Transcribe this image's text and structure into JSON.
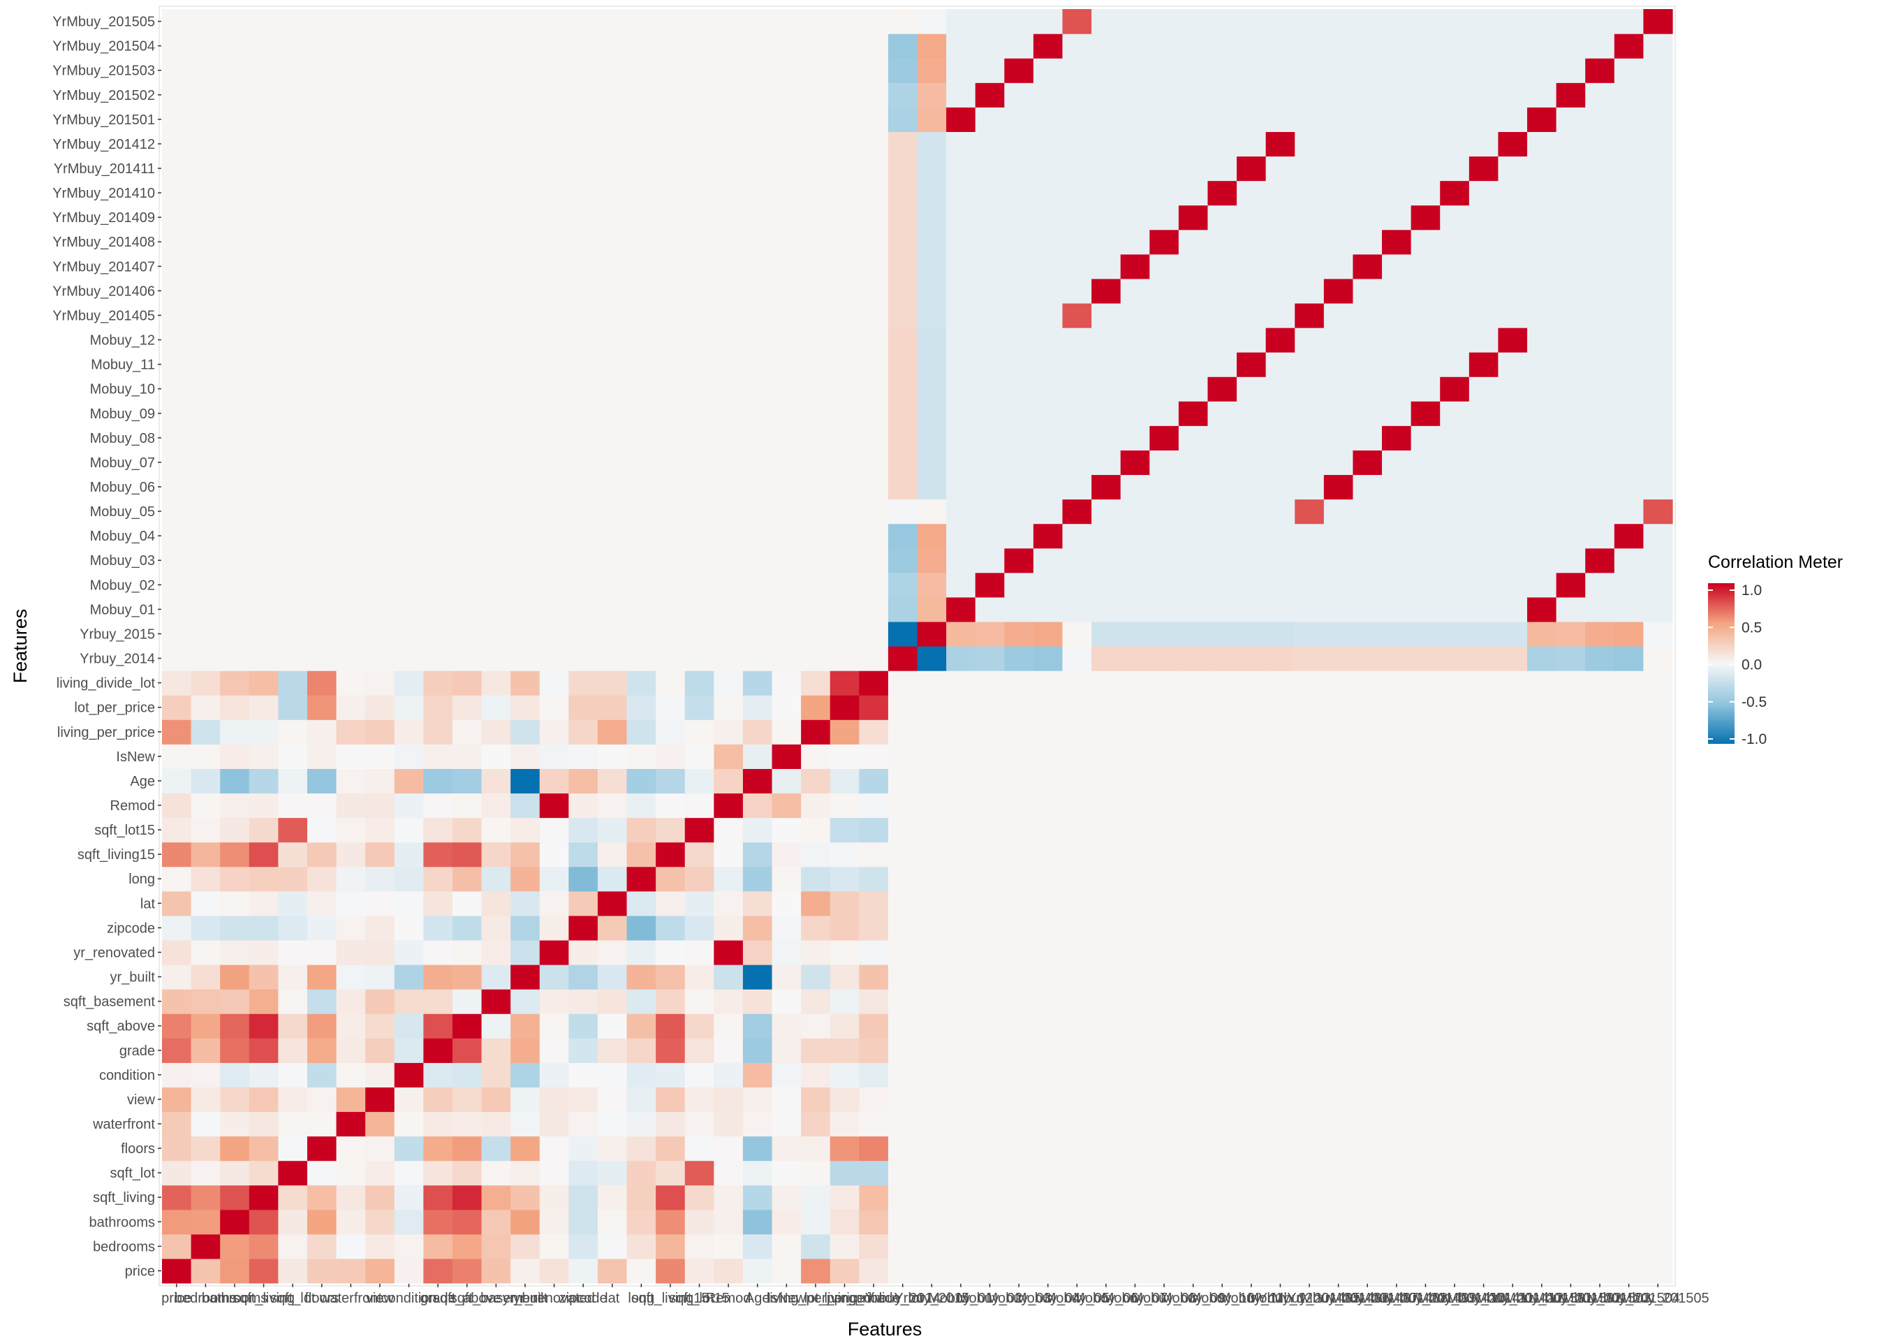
{
  "chart_data": {
    "type": "heatmap",
    "title": "",
    "xlabel": "Features",
    "ylabel": "Features",
    "features": [
      "price",
      "bedrooms",
      "bathrooms",
      "sqft_living",
      "sqft_lot",
      "floors",
      "waterfront",
      "view",
      "condition",
      "grade",
      "sqft_above",
      "sqft_basement",
      "yr_built",
      "yr_renovated",
      "zipcode",
      "lat",
      "long",
      "sqft_living15",
      "sqft_lot15",
      "Remod",
      "Age",
      "IsNew",
      "living_per_price",
      "lot_per_price",
      "living_divide_lot",
      "Yrbuy_2014",
      "Yrbuy_2015",
      "Mobuy_01",
      "Mobuy_02",
      "Mobuy_03",
      "Mobuy_04",
      "Mobuy_05",
      "Mobuy_06",
      "Mobuy_07",
      "Mobuy_08",
      "Mobuy_09",
      "Mobuy_10",
      "Mobuy_11",
      "Mobuy_12",
      "YrMbuy_201405",
      "YrMbuy_201406",
      "YrMbuy_201407",
      "YrMbuy_201408",
      "YrMbuy_201409",
      "YrMbuy_201410",
      "YrMbuy_201411",
      "YrMbuy_201412",
      "YrMbuy_201501",
      "YrMbuy_201502",
      "YrMbuy_201503",
      "YrMbuy_201504",
      "YrMbuy_201505"
    ],
    "num_group_size": 25,
    "num_values": [
      [
        1.0,
        0.31,
        0.53,
        0.7,
        0.09,
        0.26,
        0.27,
        0.4,
        0.04,
        0.67,
        0.61,
        0.32,
        0.05,
        0.13,
        -0.05,
        0.31,
        0.02,
        0.59,
        0.08,
        0.13,
        -0.05,
        0.02,
        0.56,
        0.25,
        0.1
      ],
      [
        0.31,
        1.0,
        0.52,
        0.58,
        0.03,
        0.18,
        -0.01,
        0.08,
        0.03,
        0.36,
        0.48,
        0.3,
        0.15,
        0.02,
        -0.15,
        -0.01,
        0.13,
        0.39,
        0.03,
        0.02,
        -0.15,
        0.02,
        -0.2,
        0.05,
        0.15
      ],
      [
        0.53,
        0.52,
        1.0,
        0.75,
        0.09,
        0.5,
        0.06,
        0.19,
        -0.12,
        0.66,
        0.69,
        0.28,
        0.51,
        0.05,
        -0.2,
        0.02,
        0.22,
        0.57,
        0.09,
        0.05,
        -0.51,
        0.07,
        -0.05,
        0.12,
        0.3
      ],
      [
        0.7,
        0.58,
        0.75,
        1.0,
        0.17,
        0.35,
        0.1,
        0.28,
        -0.06,
        0.76,
        0.88,
        0.44,
        0.32,
        0.06,
        -0.2,
        0.05,
        0.24,
        0.76,
        0.18,
        0.05,
        -0.32,
        0.05,
        -0.05,
        0.08,
        0.35
      ],
      [
        0.09,
        0.03,
        0.09,
        0.17,
        1.0,
        -0.01,
        0.02,
        0.07,
        -0.01,
        0.11,
        0.18,
        0.02,
        0.05,
        0.01,
        -0.13,
        -0.09,
        0.23,
        0.14,
        0.72,
        0.01,
        -0.05,
        0.0,
        0.02,
        -0.3,
        -0.3
      ],
      [
        0.26,
        0.18,
        0.5,
        0.35,
        -0.01,
        1.0,
        0.02,
        0.03,
        -0.26,
        0.46,
        0.52,
        -0.25,
        0.49,
        0.01,
        -0.06,
        0.05,
        0.13,
        0.28,
        -0.01,
        0.01,
        -0.49,
        0.05,
        0.05,
        0.55,
        0.6
      ],
      [
        0.27,
        -0.01,
        0.06,
        0.1,
        0.02,
        0.02,
        1.0,
        0.4,
        0.02,
        0.08,
        0.07,
        0.08,
        -0.03,
        0.09,
        0.03,
        -0.01,
        -0.04,
        0.09,
        0.03,
        0.09,
        0.03,
        0.0,
        0.22,
        0.05,
        0.02
      ],
      [
        0.4,
        0.08,
        0.19,
        0.28,
        0.07,
        0.03,
        0.4,
        1.0,
        0.05,
        0.25,
        0.17,
        0.28,
        -0.05,
        0.1,
        0.08,
        0.01,
        -0.08,
        0.28,
        0.07,
        0.1,
        0.05,
        0.0,
        0.25,
        0.1,
        0.03
      ],
      [
        0.04,
        0.03,
        -0.12,
        -0.06,
        -0.01,
        -0.26,
        0.02,
        0.05,
        1.0,
        -0.14,
        -0.16,
        0.17,
        -0.36,
        -0.06,
        0.0,
        -0.01,
        -0.11,
        -0.09,
        -0.01,
        -0.06,
        0.36,
        -0.03,
        0.07,
        -0.05,
        -0.1
      ],
      [
        0.67,
        0.36,
        0.66,
        0.76,
        0.11,
        0.46,
        0.08,
        0.25,
        -0.14,
        1.0,
        0.76,
        0.17,
        0.45,
        0.01,
        -0.18,
        0.11,
        0.2,
        0.71,
        0.12,
        0.01,
        -0.45,
        0.05,
        0.2,
        0.2,
        0.25
      ],
      [
        0.61,
        0.48,
        0.69,
        0.88,
        0.18,
        0.52,
        0.07,
        0.17,
        -0.16,
        0.76,
        1.0,
        -0.05,
        0.42,
        0.02,
        -0.26,
        0.0,
        0.34,
        0.73,
        0.19,
        0.02,
        -0.42,
        0.05,
        0.03,
        0.1,
        0.28
      ],
      [
        0.32,
        0.3,
        0.28,
        0.44,
        0.02,
        -0.25,
        0.08,
        0.28,
        0.17,
        0.17,
        -0.05,
        1.0,
        -0.13,
        0.07,
        0.08,
        0.11,
        -0.14,
        0.2,
        0.02,
        0.07,
        0.13,
        0.0,
        0.1,
        -0.05,
        0.1
      ],
      [
        0.05,
        0.15,
        0.51,
        0.32,
        0.05,
        0.49,
        -0.03,
        -0.05,
        -0.36,
        0.45,
        0.42,
        -0.13,
        1.0,
        -0.22,
        -0.35,
        -0.15,
        0.41,
        0.33,
        0.07,
        -0.22,
        -1.0,
        0.05,
        -0.2,
        0.1,
        0.32
      ],
      [
        0.13,
        0.02,
        0.05,
        0.06,
        0.01,
        0.01,
        0.09,
        0.1,
        -0.06,
        0.01,
        0.02,
        0.07,
        -0.22,
        1.0,
        0.06,
        0.03,
        -0.07,
        0.0,
        0.01,
        1.0,
        0.22,
        -0.03,
        0.05,
        0.02,
        -0.02
      ],
      [
        -0.05,
        -0.15,
        -0.2,
        -0.2,
        -0.13,
        -0.06,
        0.03,
        0.08,
        0.0,
        -0.18,
        -0.26,
        0.08,
        -0.35,
        0.06,
        1.0,
        0.27,
        -0.56,
        -0.28,
        -0.15,
        0.06,
        0.35,
        -0.02,
        0.2,
        0.25,
        0.18
      ],
      [
        0.31,
        -0.01,
        0.02,
        0.05,
        -0.09,
        0.05,
        -0.01,
        0.01,
        -0.01,
        0.11,
        0.0,
        0.11,
        -0.15,
        0.03,
        0.27,
        1.0,
        -0.14,
        0.05,
        -0.09,
        0.03,
        0.15,
        0.0,
        0.45,
        0.25,
        0.18
      ],
      [
        0.02,
        0.13,
        0.22,
        0.24,
        0.23,
        0.13,
        -0.04,
        -0.08,
        -0.11,
        0.2,
        0.34,
        -0.14,
        0.41,
        -0.07,
        -0.56,
        -0.14,
        1.0,
        0.33,
        0.25,
        -0.07,
        -0.41,
        0.02,
        -0.2,
        -0.15,
        -0.2
      ],
      [
        0.59,
        0.39,
        0.57,
        0.76,
        0.14,
        0.28,
        0.09,
        0.28,
        -0.09,
        0.71,
        0.73,
        0.2,
        0.33,
        0.0,
        -0.28,
        0.05,
        0.33,
        1.0,
        0.18,
        0.0,
        -0.33,
        0.04,
        -0.03,
        -0.02,
        0.02
      ],
      [
        0.08,
        0.03,
        0.09,
        0.18,
        0.72,
        -0.01,
        0.03,
        0.07,
        -0.01,
        0.12,
        0.19,
        0.02,
        0.07,
        0.01,
        -0.15,
        -0.09,
        0.25,
        0.18,
        1.0,
        0.01,
        -0.07,
        0.0,
        0.02,
        -0.25,
        -0.28
      ],
      [
        0.13,
        0.02,
        0.05,
        0.06,
        0.01,
        0.01,
        0.09,
        0.1,
        -0.06,
        0.01,
        0.02,
        0.07,
        -0.22,
        1.0,
        0.06,
        0.03,
        -0.07,
        0.0,
        0.01,
        1.0,
        0.22,
        0.35,
        0.05,
        0.02,
        -0.02
      ],
      [
        -0.05,
        -0.15,
        -0.51,
        -0.32,
        -0.05,
        -0.49,
        0.03,
        0.05,
        0.36,
        -0.45,
        -0.42,
        0.13,
        -1.0,
        0.22,
        0.35,
        0.15,
        -0.41,
        -0.33,
        -0.07,
        0.22,
        1.0,
        -0.08,
        0.2,
        -0.1,
        -0.32
      ],
      [
        0.02,
        0.02,
        0.07,
        0.05,
        0.0,
        0.05,
        0.0,
        0.0,
        -0.03,
        0.05,
        0.05,
        0.0,
        0.05,
        -0.03,
        -0.02,
        0.0,
        0.02,
        0.04,
        0.0,
        0.35,
        -0.08,
        1.0,
        0.02,
        0.0,
        0.01
      ],
      [
        0.56,
        -0.2,
        -0.05,
        -0.05,
        0.02,
        0.05,
        0.22,
        0.25,
        0.07,
        0.2,
        0.03,
        0.1,
        -0.2,
        0.05,
        0.2,
        0.45,
        -0.2,
        -0.03,
        0.02,
        0.05,
        0.2,
        0.02,
        1.0,
        0.5,
        0.15
      ],
      [
        0.25,
        0.05,
        0.12,
        0.08,
        -0.3,
        0.55,
        0.05,
        0.1,
        -0.05,
        0.2,
        0.1,
        -0.05,
        0.1,
        0.02,
        0.25,
        0.25,
        -0.15,
        -0.02,
        -0.25,
        0.02,
        -0.1,
        0.0,
        0.5,
        1.0,
        0.85
      ],
      [
        0.1,
        0.15,
        0.3,
        0.35,
        -0.3,
        0.6,
        0.02,
        0.03,
        -0.1,
        0.25,
        0.28,
        0.1,
        0.32,
        -0.02,
        0.18,
        0.18,
        -0.2,
        0.02,
        -0.28,
        -0.02,
        -0.32,
        0.01,
        0.15,
        0.85,
        1.0
      ]
    ],
    "ylim": [
      -1,
      1
    ]
  },
  "legend": {
    "title": "Correlation Meter",
    "ticks": [
      "1.0",
      "0.5",
      "0.0",
      "-0.5",
      "-1.0"
    ],
    "colors": {
      "low": "#0571b0",
      "mid": "#f7f7f7",
      "high": "#ca0020"
    }
  }
}
